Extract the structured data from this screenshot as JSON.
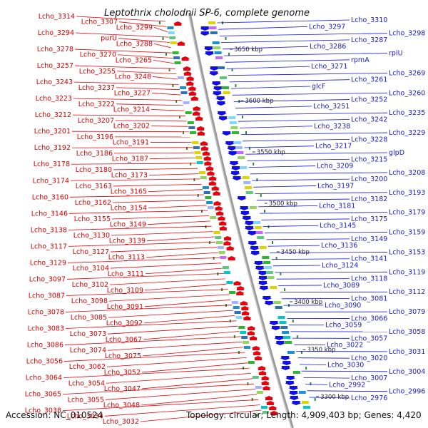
{
  "title": "Leptothrix cholodnii SP-6, complete genome",
  "accession": "Accession: NC_010524",
  "topology": "Topology: circular; Length: 4,909,403 bp; Genes: 4,420",
  "colors": {
    "reverse_strand": "#e8000b",
    "forward_strand": "#1010e6",
    "backbone": "#9a9a9a",
    "ticks": "#2a8a2a"
  },
  "scale_labels": [
    "3650 kbp",
    "3600 kbp",
    "3550 kbp",
    "3500 kbp",
    "3450 kbp",
    "3400 kbp",
    "3350 kbp",
    "3300 kbp"
  ],
  "left_labels": [
    "Lcho_3314",
    "Lcho_3307",
    "Lcho_3299",
    "Lcho_3294",
    "purU",
    "Lcho_3288",
    "Lcho_3278",
    "Lcho_3270",
    "Lcho_3265",
    "Lcho_3257",
    "Lcho_3255",
    "Lcho_3248",
    "Lcho_3243",
    "Lcho_3237",
    "Lcho_3227",
    "Lcho_3223",
    "Lcho_3222",
    "Lcho_3214",
    "Lcho_3212",
    "Lcho_3207",
    "Lcho_3202",
    "Lcho_3201",
    "Lcho_3196",
    "Lcho_3191",
    "Lcho_3192",
    "Lcho_3186",
    "Lcho_3187",
    "Lcho_3178",
    "Lcho_3180",
    "Lcho_3173",
    "Lcho_3174",
    "Lcho_3163",
    "Lcho_3165",
    "Lcho_3160",
    "Lcho_3162",
    "Lcho_3154",
    "Lcho_3146",
    "Lcho_3155",
    "Lcho_3149",
    "Lcho_3138",
    "Lcho_3130",
    "Lcho_3139",
    "Lcho_3117",
    "Lcho_3127",
    "Lcho_3113",
    "Lcho_3129",
    "Lcho_3104",
    "Lcho_3111",
    "Lcho_3097",
    "Lcho_3102",
    "Lcho_3109",
    "Lcho_3087",
    "Lcho_3098",
    "Lcho_3091",
    "Lcho_3078",
    "Lcho_3085",
    "Lcho_3092",
    "Lcho_3083",
    "Lcho_3073",
    "Lcho_3067",
    "Lcho_3086",
    "Lcho_3074",
    "Lcho_3075",
    "Lcho_3056",
    "Lcho_3062",
    "Lcho_3052",
    "Lcho_3064",
    "Lcho_3054",
    "Lcho_3047",
    "Lcho_3065",
    "Lcho_3055",
    "Lcho_3048",
    "Lcho_3038",
    "Lcho_3034",
    "Lcho_3032"
  ],
  "right_labels": [
    "Lcho_3310",
    "Lcho_3297",
    "Lcho_3298",
    "Lcho_3287",
    "Lcho_3286",
    "rplU",
    "rpmA",
    "Lcho_3271",
    "Lcho_3269",
    "Lcho_3261",
    "glcF",
    "Lcho_3260",
    "Lcho_3252",
    "Lcho_3251",
    "Lcho_3235",
    "Lcho_3242",
    "Lcho_3238",
    "Lcho_3229",
    "Lcho_3228",
    "Lcho_3217",
    "glpD",
    "Lcho_3215",
    "Lcho_3209",
    "Lcho_3208",
    "Lcho_3200",
    "Lcho_3197",
    "Lcho_3193",
    "Lcho_3182",
    "Lcho_3181",
    "Lcho_3179",
    "Lcho_3175",
    "Lcho_3145",
    "Lcho_3159",
    "Lcho_3149",
    "Lcho_3136",
    "Lcho_3153",
    "Lcho_3141",
    "Lcho_3124",
    "Lcho_3119",
    "Lcho_3118",
    "Lcho_3089",
    "Lcho_3112",
    "Lcho_3081",
    "Lcho_3090",
    "Lcho_3079",
    "Lcho_3066",
    "Lcho_3059",
    "Lcho_3058",
    "Lcho_3057",
    "Lcho_3022",
    "Lcho_3031",
    "Lcho_3020",
    "Lcho_3030",
    "Lcho_3004",
    "Lcho_3007",
    "Lcho_2992",
    "Lcho_2996",
    "Lcho_2976"
  ]
}
